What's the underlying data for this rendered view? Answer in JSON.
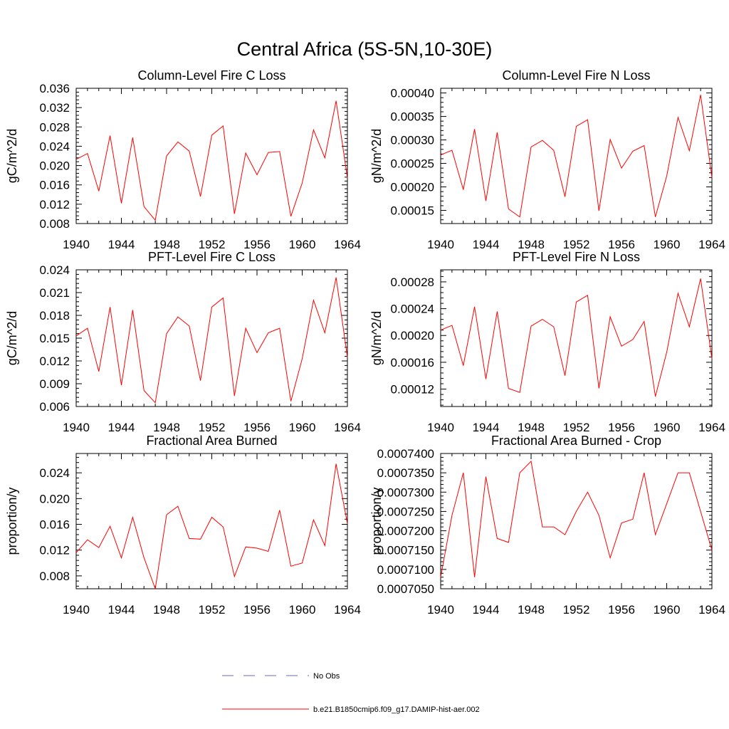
{
  "figure_title": "Central Africa (5S-5N,10-30E)",
  "chart_data": [
    {
      "type": "line",
      "title": "Column-Level Fire C Loss",
      "ylabel": "gC/m^2/d",
      "xlim": [
        1940,
        1964
      ],
      "ylim": [
        0.008,
        0.036
      ],
      "xticks": [
        1940,
        1944,
        1948,
        1952,
        1956,
        1960,
        1964
      ],
      "yticks": [
        0.008,
        0.012,
        0.016,
        0.02,
        0.024,
        0.028,
        0.032,
        0.036
      ],
      "ytick_labels": [
        "0.008",
        "0.012",
        "0.016",
        "0.020",
        "0.024",
        "0.028",
        "0.032",
        "0.036"
      ],
      "x": [
        1940,
        1941,
        1942,
        1943,
        1944,
        1945,
        1946,
        1947,
        1948,
        1949,
        1950,
        1951,
        1952,
        1953,
        1954,
        1955,
        1956,
        1957,
        1958,
        1959,
        1960,
        1961,
        1962,
        1963,
        1964
      ],
      "series": [
        {
          "name": "b.e21.B1850cmip6.f09_g17.DAMIP-hist-aer.002",
          "color": "#ff0000",
          "values": [
            0.0213,
            0.0225,
            0.0147,
            0.0262,
            0.0122,
            0.0258,
            0.0115,
            0.0087,
            0.022,
            0.0249,
            0.023,
            0.0136,
            0.0263,
            0.0282,
            0.01,
            0.0226,
            0.0181,
            0.0227,
            0.0229,
            0.0095,
            0.0164,
            0.0274,
            0.0216,
            0.0334,
            0.0174
          ]
        }
      ]
    },
    {
      "type": "line",
      "title": "Column-Level Fire N Loss",
      "ylabel": "gN/m^2/d",
      "xlim": [
        1940,
        1964
      ],
      "ylim": [
        0.000122,
        0.00041
      ],
      "xticks": [
        1940,
        1944,
        1948,
        1952,
        1956,
        1960,
        1964
      ],
      "yticks": [
        0.00015,
        0.0002,
        0.00025,
        0.0003,
        0.00035,
        0.0004
      ],
      "ytick_labels": [
        "0.00015",
        "0.00020",
        "0.00025",
        "0.00030",
        "0.00035",
        "0.00040"
      ],
      "x": [
        1940,
        1941,
        1942,
        1943,
        1944,
        1945,
        1946,
        1947,
        1948,
        1949,
        1950,
        1951,
        1952,
        1953,
        1954,
        1955,
        1956,
        1957,
        1958,
        1959,
        1960,
        1961,
        1962,
        1963,
        1964
      ],
      "series": [
        {
          "name": "b.e21.B1850cmip6.f09_g17.DAMIP-hist-aer.002",
          "color": "#ff0000",
          "values": [
            0.000268,
            0.000278,
            0.000194,
            0.000323,
            0.00017,
            0.000316,
            0.000153,
            0.000136,
            0.000285,
            0.000299,
            0.000278,
            0.000179,
            0.000329,
            0.000343,
            0.000149,
            0.000301,
            0.00024,
            0.000276,
            0.000288,
            0.000136,
            0.000223,
            0.000348,
            0.000277,
            0.000396,
            0.00022
          ]
        }
      ]
    },
    {
      "type": "line",
      "title": "PFT-Level Fire C Loss",
      "ylabel": "gC/m^2/d",
      "xlim": [
        1940,
        1964
      ],
      "ylim": [
        0.006,
        0.024
      ],
      "xticks": [
        1940,
        1944,
        1948,
        1952,
        1956,
        1960,
        1964
      ],
      "yticks": [
        0.006,
        0.009,
        0.012,
        0.015,
        0.018,
        0.021,
        0.024
      ],
      "ytick_labels": [
        "0.006",
        "0.009",
        "0.012",
        "0.015",
        "0.018",
        "0.021",
        "0.024"
      ],
      "x": [
        1940,
        1941,
        1942,
        1943,
        1944,
        1945,
        1946,
        1947,
        1948,
        1949,
        1950,
        1951,
        1952,
        1953,
        1954,
        1955,
        1956,
        1957,
        1958,
        1959,
        1960,
        1961,
        1962,
        1963,
        1964
      ],
      "series": [
        {
          "name": "b.e21.B1850cmip6.f09_g17.DAMIP-hist-aer.002",
          "color": "#ff0000",
          "values": [
            0.0153,
            0.0163,
            0.0106,
            0.0191,
            0.0088,
            0.0187,
            0.0081,
            0.0065,
            0.0156,
            0.0178,
            0.0166,
            0.0094,
            0.0191,
            0.0203,
            0.0074,
            0.0163,
            0.0131,
            0.0157,
            0.0163,
            0.0067,
            0.0123,
            0.02,
            0.0157,
            0.023,
            0.0125
          ]
        }
      ]
    },
    {
      "type": "line",
      "title": "PFT-Level Fire N Loss",
      "ylabel": "gN/m^2/d",
      "xlim": [
        1940,
        1964
      ],
      "ylim": [
        9.4e-05,
        0.000298
      ],
      "xticks": [
        1940,
        1944,
        1948,
        1952,
        1956,
        1960,
        1964
      ],
      "yticks": [
        0.00012,
        0.00016,
        0.0002,
        0.00024,
        0.00028
      ],
      "ytick_labels": [
        "0.00012",
        "0.00016",
        "0.00020",
        "0.00024",
        "0.00028"
      ],
      "x": [
        1940,
        1941,
        1942,
        1943,
        1944,
        1945,
        1946,
        1947,
        1948,
        1949,
        1950,
        1951,
        1952,
        1953,
        1954,
        1955,
        1956,
        1957,
        1958,
        1959,
        1960,
        1961,
        1962,
        1963,
        1964
      ],
      "series": [
        {
          "name": "b.e21.B1850cmip6.f09_g17.DAMIP-hist-aer.002",
          "color": "#ff0000",
          "values": [
            0.000208,
            0.000215,
            0.000155,
            0.000243,
            0.000135,
            0.000236,
            0.000121,
            0.000115,
            0.000214,
            0.000224,
            0.000213,
            0.00014,
            0.00025,
            0.00026,
            0.000121,
            0.000228,
            0.000184,
            0.000194,
            0.000221,
            0.000109,
            0.000175,
            0.000263,
            0.000213,
            0.000285,
            0.000165
          ]
        }
      ]
    },
    {
      "type": "line",
      "title": "Fractional Area Burned",
      "ylabel": "proportion/y",
      "xlim": [
        1940,
        1964
      ],
      "ylim": [
        0.006,
        0.027
      ],
      "xticks": [
        1940,
        1944,
        1948,
        1952,
        1956,
        1960,
        1964
      ],
      "yticks": [
        0.008,
        0.012,
        0.016,
        0.02,
        0.024
      ],
      "ytick_labels": [
        "0.008",
        "0.012",
        "0.016",
        "0.020",
        "0.024"
      ],
      "x": [
        1940,
        1941,
        1942,
        1943,
        1944,
        1945,
        1946,
        1947,
        1948,
        1949,
        1950,
        1951,
        1952,
        1953,
        1954,
        1955,
        1956,
        1957,
        1958,
        1959,
        1960,
        1961,
        1962,
        1963,
        1964
      ],
      "series": [
        {
          "name": "b.e21.B1850cmip6.f09_g17.DAMIP-hist-aer.002",
          "color": "#ff0000",
          "values": [
            0.0116,
            0.0136,
            0.0124,
            0.0157,
            0.0108,
            0.0171,
            0.0108,
            0.006,
            0.0175,
            0.0188,
            0.0138,
            0.0137,
            0.0171,
            0.0156,
            0.0079,
            0.0125,
            0.0123,
            0.0118,
            0.0182,
            0.0095,
            0.01,
            0.0167,
            0.0127,
            0.0254,
            0.0161
          ]
        }
      ]
    },
    {
      "type": "line",
      "title": "Fractional Area Burned - Crop",
      "ylabel": "proportion/y",
      "xlim": [
        1940,
        1964
      ],
      "ylim": [
        0.000705,
        0.00074
      ],
      "xticks": [
        1940,
        1944,
        1948,
        1952,
        1956,
        1960,
        1964
      ],
      "yticks": [
        0.000705,
        0.00071,
        0.000715,
        0.00072,
        0.000725,
        0.00073,
        0.000735,
        0.00074
      ],
      "ytick_labels": [
        "0.0007050",
        "0.0007100",
        "0.0007150",
        "0.0007200",
        "0.0007250",
        "0.0007300",
        "0.0007350",
        "0.0007400"
      ],
      "x": [
        1940,
        1941,
        1942,
        1943,
        1944,
        1945,
        1946,
        1947,
        1948,
        1949,
        1950,
        1951,
        1952,
        1953,
        1954,
        1955,
        1956,
        1957,
        1958,
        1959,
        1960,
        1961,
        1962,
        1963,
        1964
      ],
      "series": [
        {
          "name": "b.e21.B1850cmip6.f09_g17.DAMIP-hist-aer.002",
          "color": "#ff0000",
          "values": [
            0.000708,
            0.000724,
            0.000735,
            0.000708,
            0.000734,
            0.000718,
            0.000717,
            0.000735,
            0.000738,
            0.000721,
            0.000721,
            0.000719,
            0.000725,
            0.00073,
            0.000724,
            0.000713,
            0.000722,
            0.000723,
            0.000735,
            0.000719,
            0.000727,
            0.000735,
            0.000735,
            0.000725,
            0.000715
          ]
        }
      ]
    }
  ],
  "legend": [
    {
      "label": "No Obs",
      "color": "#6b6bb5",
      "style": "dashed"
    },
    {
      "label": "b.e21.B1850cmip6.f09_g17.DAMIP-hist-aer.002",
      "color": "#ff0000",
      "style": "solid"
    }
  ]
}
